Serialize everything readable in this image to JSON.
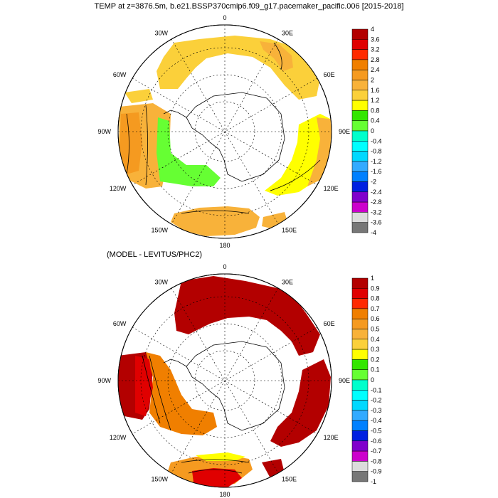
{
  "title": "TEMP at z=3876.5m, b.e21.BSSP370cmip6.f09_g17.pacemaker_pacific.006 [2015-2018]",
  "subtitle": "(MODEL - LEVITUS/PHC2)",
  "longitude_labels": [
    "0",
    "30E",
    "60E",
    "90E",
    "120E",
    "150E",
    "180",
    "150W",
    "120W",
    "90W",
    "60W",
    "30W"
  ],
  "colorbars": [
    {
      "name": "temperature",
      "labels": [
        "4",
        "3.6",
        "3.2",
        "2.8",
        "2.4",
        "2",
        "1.6",
        "1.2",
        "0.8",
        "0.4",
        "0",
        "-0.4",
        "-0.8",
        "-1.2",
        "-1.6",
        "-2",
        "-2.4",
        "-2.8",
        "-3.2",
        "-3.6",
        "-4"
      ],
      "colors": [
        "#b30000",
        "#e00000",
        "#ff2a00",
        "#f07f00",
        "#f59a20",
        "#f8b23a",
        "#fbd03a",
        "#ffff00",
        "#33e600",
        "#66ff33",
        "#00ffcc",
        "#00ffff",
        "#00d8ff",
        "#33aaff",
        "#0080ff",
        "#0020e0",
        "#8000cc",
        "#cc00cc",
        "#dcdcdc",
        "#777777"
      ]
    },
    {
      "name": "difference",
      "labels": [
        "1",
        "0.9",
        "0.8",
        "0.7",
        "0.6",
        "0.5",
        "0.4",
        "0.3",
        "0.2",
        "0.1",
        "0",
        "-0.1",
        "-0.2",
        "-0.3",
        "-0.4",
        "-0.5",
        "-0.6",
        "-0.7",
        "-0.8",
        "-0.9",
        "-1"
      ],
      "colors": [
        "#b30000",
        "#e00000",
        "#ff2a00",
        "#f07f00",
        "#f59a20",
        "#f8b23a",
        "#fbd03a",
        "#ffff00",
        "#33e600",
        "#66ff33",
        "#00ffcc",
        "#00ffff",
        "#00d8ff",
        "#33aaff",
        "#0080ff",
        "#0020e0",
        "#8000cc",
        "#cc00cc",
        "#dcdcdc",
        "#777777"
      ]
    }
  ]
}
